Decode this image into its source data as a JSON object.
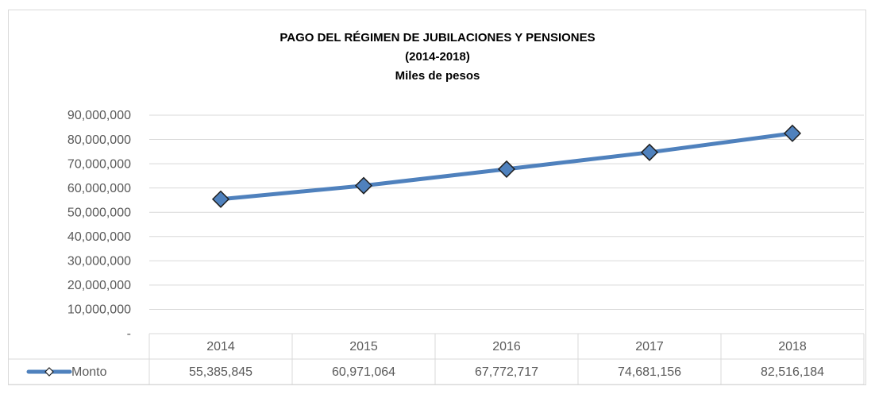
{
  "chart_data": {
    "type": "line",
    "title": "PAGO DEL RÉGIMEN DE JUBILACIONES Y PENSIONES",
    "subtitle": [
      "(2014-2018)",
      "Miles de pesos"
    ],
    "categories": [
      "2014",
      "2015",
      "2016",
      "2017",
      "2018"
    ],
    "series": [
      {
        "name": "Monto",
        "color": "#4f81bd",
        "values": [
          55385845,
          60971064,
          67772717,
          74681156,
          82516184
        ],
        "value_labels": [
          "55,385,845",
          "60,971,064",
          "67,772,717",
          "74,681,156",
          "82,516,184"
        ]
      }
    ],
    "ylim": [
      0,
      90000000
    ],
    "yticks": [
      {
        "value": 0,
        "label": "-"
      },
      {
        "value": 10000000,
        "label": "10,000,000"
      },
      {
        "value": 20000000,
        "label": "20,000,000"
      },
      {
        "value": 30000000,
        "label": "30,000,000"
      },
      {
        "value": 40000000,
        "label": "40,000,000"
      },
      {
        "value": 50000000,
        "label": "50,000,000"
      },
      {
        "value": 60000000,
        "label": "60,000,000"
      },
      {
        "value": 70000000,
        "label": "70,000,000"
      },
      {
        "value": 80000000,
        "label": "80,000,000"
      },
      {
        "value": 90000000,
        "label": "90,000,000"
      }
    ],
    "grid": true
  }
}
